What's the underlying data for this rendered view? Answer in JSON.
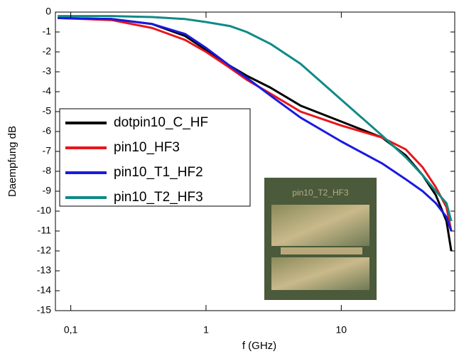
{
  "chart_data": {
    "type": "line",
    "xlabel": "f (GHz)",
    "ylabel": "Daempfung dB",
    "xscale": "log",
    "xlim": [
      0.077,
      69
    ],
    "ylim": [
      -15,
      0
    ],
    "xticks": [
      {
        "value": 0.1,
        "label": "0,1"
      },
      1,
      10
    ],
    "yticks": [
      0,
      -1,
      -2,
      -3,
      -4,
      -5,
      -6,
      -7,
      -8,
      -9,
      -10,
      -11,
      -12,
      -13,
      -14,
      -15
    ],
    "legend": "upper left",
    "inset_label": "pin10_T2_HF3",
    "x": [
      0.08,
      0.2,
      0.4,
      0.7,
      1,
      1.5,
      2,
      3,
      5,
      10,
      20,
      30,
      40,
      50,
      60,
      65
    ],
    "series": [
      {
        "name": "dotpin10_C_HF",
        "color": "#000000",
        "values": [
          -0.3,
          -0.35,
          -0.6,
          -1.2,
          -1.9,
          -2.7,
          -3.2,
          -3.8,
          -4.7,
          -5.5,
          -6.3,
          -7.2,
          -8.2,
          -9.2,
          -10.5,
          -12
        ]
      },
      {
        "name": "pin10_HF3",
        "color": "#e8161b",
        "values": [
          -0.3,
          -0.4,
          -0.8,
          -1.4,
          -2.0,
          -2.8,
          -3.4,
          -4.1,
          -5.0,
          -5.7,
          -6.3,
          -6.9,
          -7.8,
          -8.8,
          -9.8,
          -11
        ]
      },
      {
        "name": "pin10_T1_HF2",
        "color": "#1a1adf",
        "values": [
          -0.3,
          -0.35,
          -0.6,
          -1.1,
          -1.8,
          -2.7,
          -3.3,
          -4.2,
          -5.3,
          -6.5,
          -7.6,
          -8.4,
          -9.0,
          -9.6,
          -10.3,
          -11
        ]
      },
      {
        "name": "pin10_T2_HF3",
        "color": "#0f8a86",
        "values": [
          -0.2,
          -0.2,
          -0.25,
          -0.35,
          -0.5,
          -0.7,
          -1.0,
          -1.6,
          -2.6,
          -4.4,
          -6.2,
          -7.3,
          -8.2,
          -9.0,
          -9.6,
          -10.5
        ]
      }
    ]
  }
}
